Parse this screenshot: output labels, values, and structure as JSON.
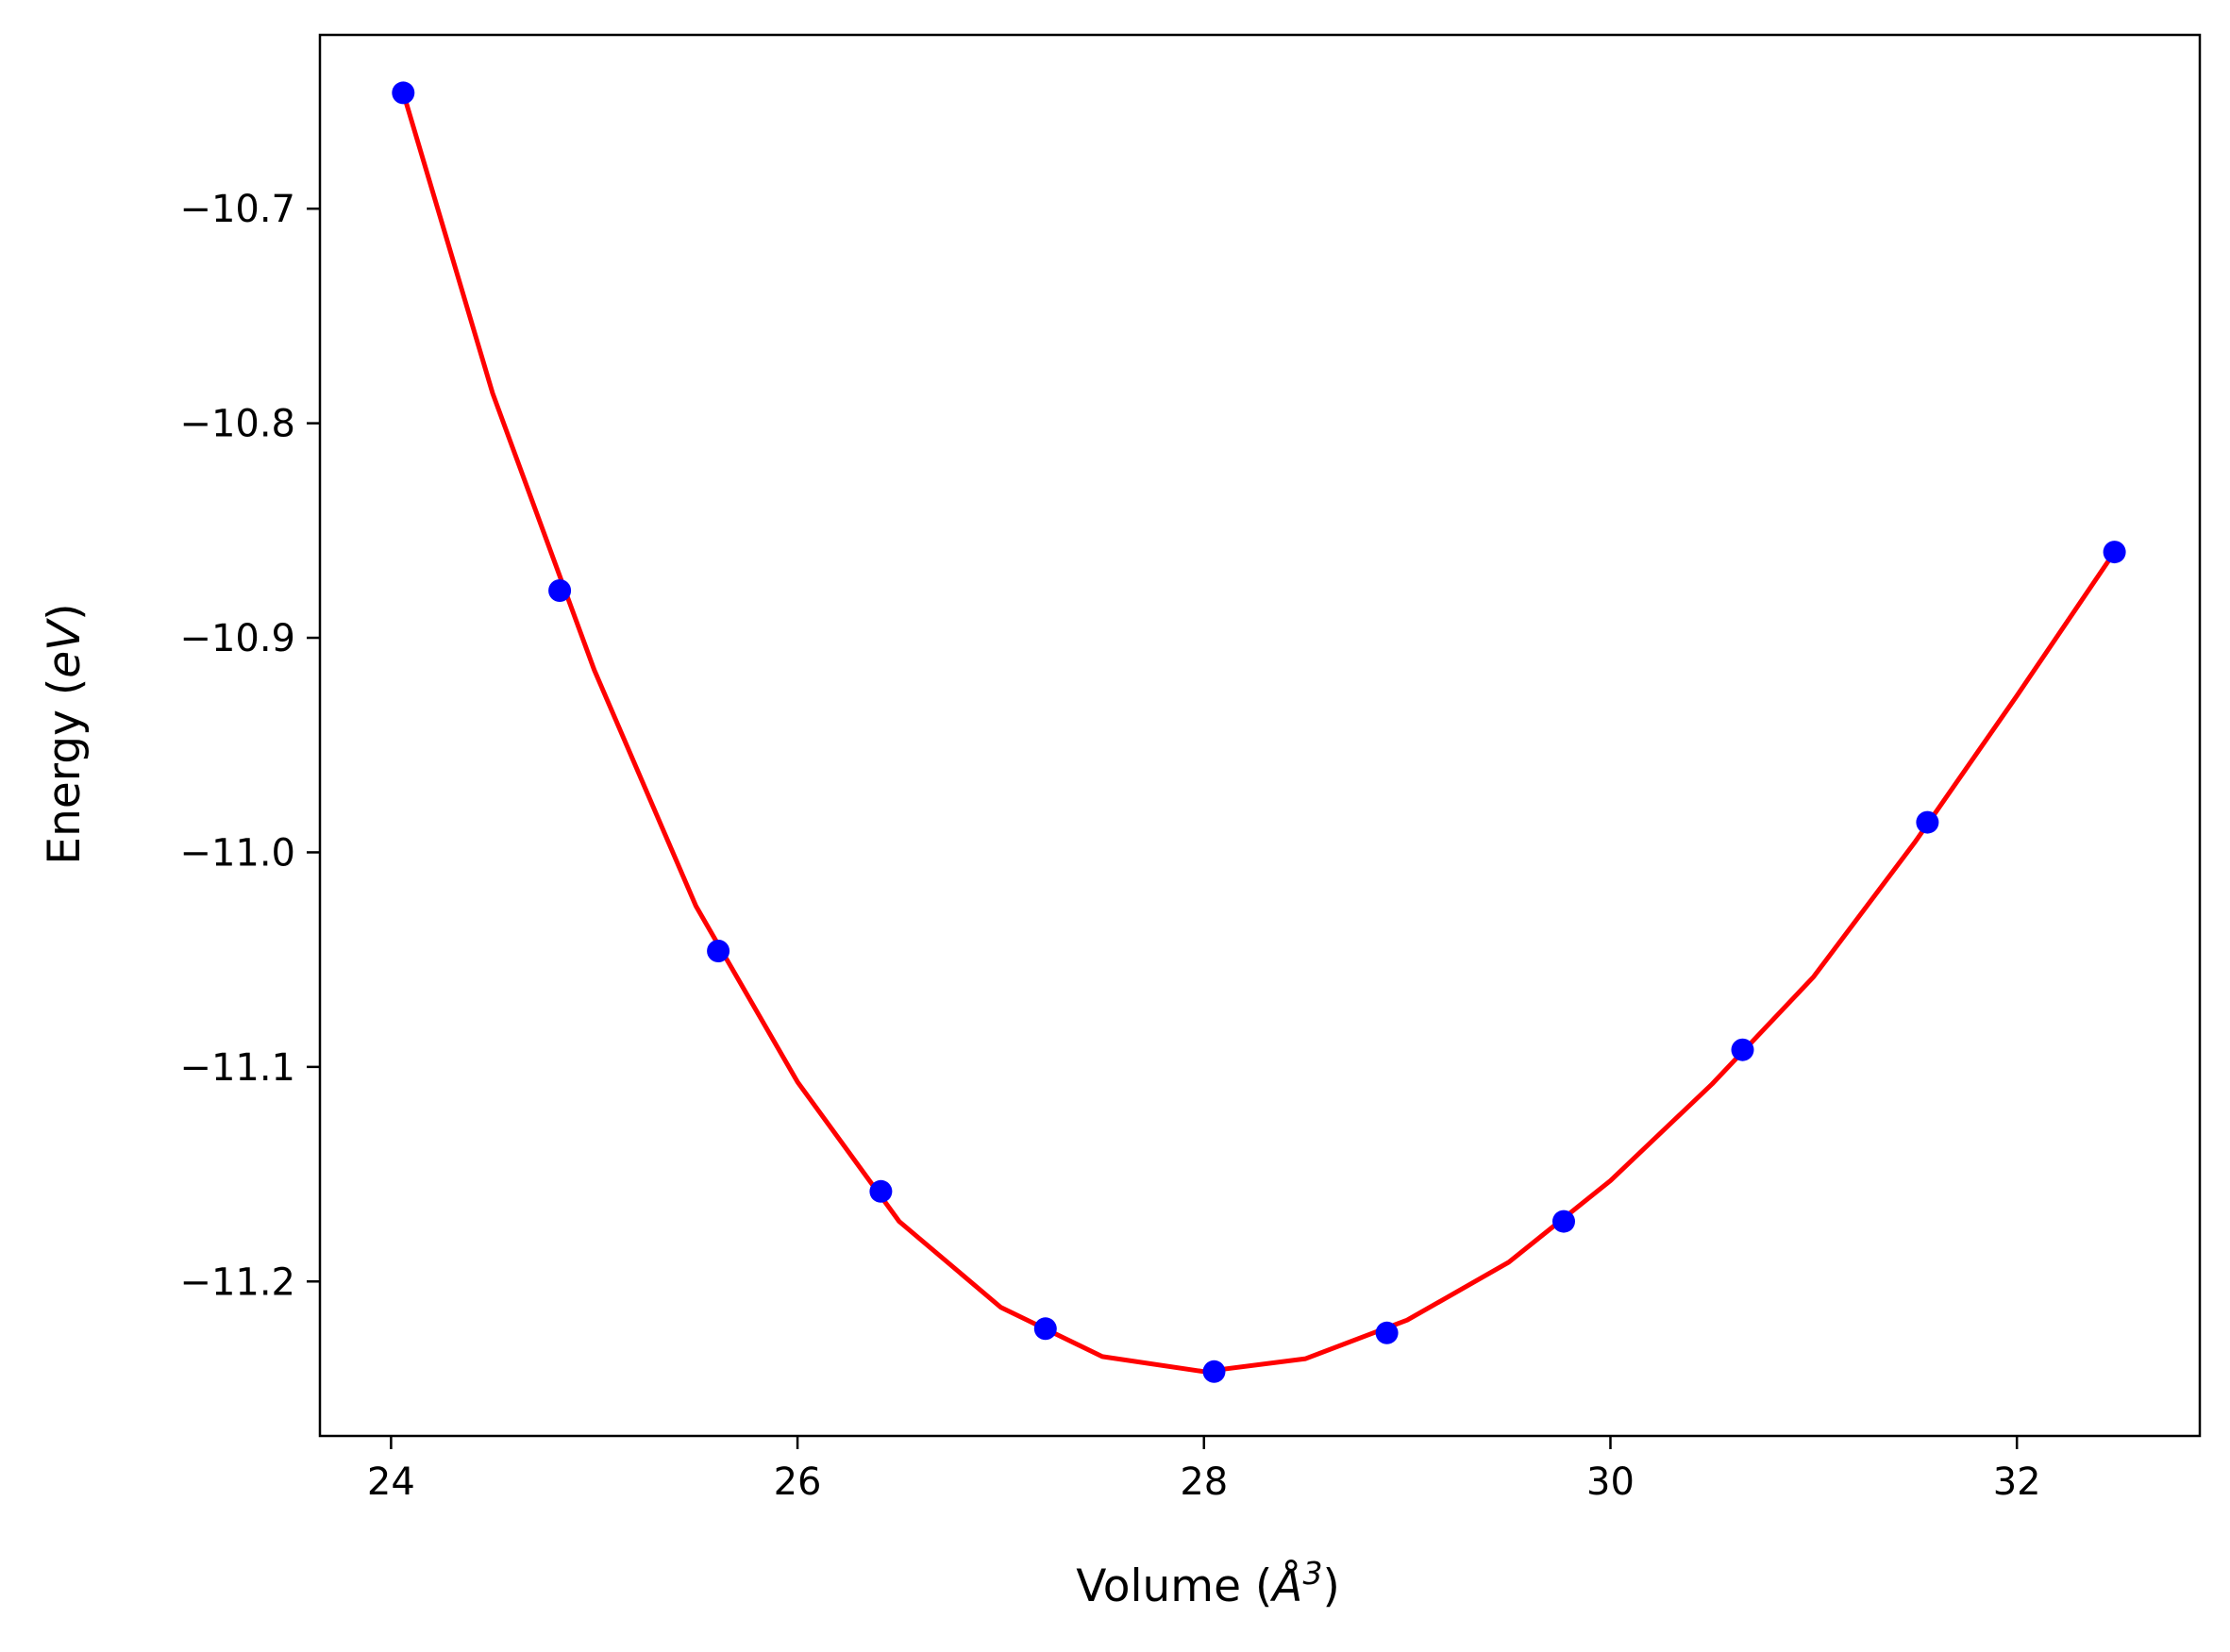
{
  "chart_data": {
    "type": "scatter",
    "title": "",
    "xlabel": "Volume (Å³)",
    "xlabel_parts": {
      "prefix": "Volume (",
      "unit": "Å",
      "exponent": "3",
      "suffix": ")"
    },
    "ylabel": "Energy (eV)",
    "ylabel_parts": {
      "prefix": "Energy (",
      "unit": "eV",
      "suffix": ")"
    },
    "xlim": [
      23.65,
      32.9
    ],
    "ylim": [
      -11.272,
      -10.619
    ],
    "xticks": [
      24,
      26,
      28,
      30,
      32
    ],
    "xtick_labels": [
      "24",
      "26",
      "28",
      "30",
      "32"
    ],
    "yticks": [
      -10.7,
      -10.8,
      -10.9,
      -11.0,
      -11.1,
      -11.2
    ],
    "ytick_labels": [
      "−10.7",
      "−10.8",
      "−10.9",
      "−11.0",
      "−11.1",
      "−11.2"
    ],
    "grid": false,
    "legend": "none",
    "series": [
      {
        "type": "scatter",
        "color": "#0000ff",
        "marker": "circle",
        "x": [
          24.06,
          24.83,
          25.61,
          26.41,
          27.22,
          28.05,
          28.9,
          29.77,
          30.65,
          31.56,
          32.48
        ],
        "y": [
          -10.646,
          -10.878,
          -11.046,
          -11.158,
          -11.222,
          -11.242,
          -11.224,
          -11.172,
          -11.092,
          -10.986,
          -10.86
        ]
      },
      {
        "type": "line",
        "color": "#ff0000",
        "x": [
          24.06,
          24.5,
          25.0,
          25.5,
          26.0,
          26.5,
          27.0,
          27.5,
          28.0,
          28.5,
          29.0,
          29.5,
          30.0,
          30.5,
          31.0,
          31.5,
          32.0,
          32.48
        ],
        "y": [
          -10.646,
          -10.786,
          -10.915,
          -11.025,
          -11.107,
          -11.172,
          -11.212,
          -11.235,
          -11.242,
          -11.236,
          -11.218,
          -11.191,
          -11.153,
          -11.108,
          -11.058,
          -10.995,
          -10.927,
          -10.86
        ]
      }
    ]
  }
}
